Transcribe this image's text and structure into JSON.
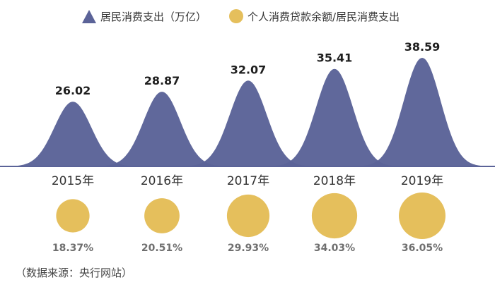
{
  "chart_data": {
    "type": "area",
    "categories": [
      "2015年",
      "2016年",
      "2017年",
      "2018年",
      "2019年"
    ],
    "series": [
      {
        "name": "居民消费支出（万亿）",
        "values": [
          26.02,
          28.87,
          32.07,
          35.41,
          38.59
        ],
        "labels": [
          "26.02",
          "28.87",
          "32.07",
          "35.41",
          "38.59"
        ],
        "color": "#5b6398"
      },
      {
        "name": "个人消费贷款余额/居民消费支出",
        "values": [
          18.37,
          20.51,
          29.93,
          34.03,
          36.05
        ],
        "labels": [
          "18.37%",
          "20.51%",
          "29.93%",
          "34.03%",
          "36.05%"
        ],
        "color": "#e5bf5c"
      }
    ],
    "legend": "top",
    "grid": false,
    "source": "（数据来源：央行网站）"
  }
}
